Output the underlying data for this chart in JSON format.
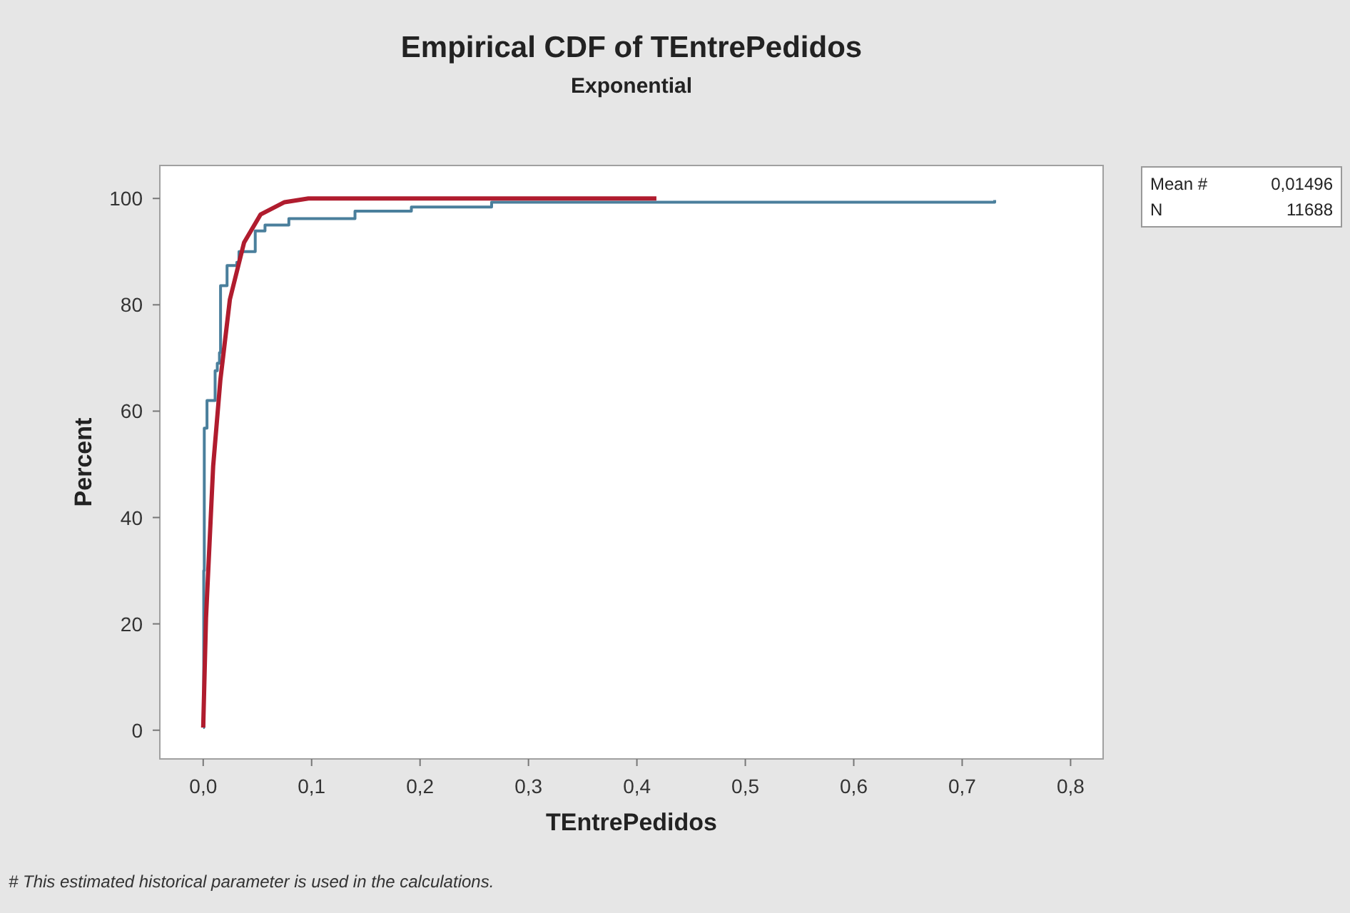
{
  "chart_data": {
    "type": "line",
    "title": "Empirical CDF of TEntrePedidos",
    "subtitle": "Exponential",
    "xlabel": "TEntrePedidos",
    "ylabel": "Percent",
    "xlim": [
      -0.04,
      0.83
    ],
    "ylim": [
      -5.4,
      106.2
    ],
    "xticks": [
      {
        "value": 0,
        "label": "0,0"
      },
      {
        "value": 0.1,
        "label": "0,1"
      },
      {
        "value": 0.2,
        "label": "0,2"
      },
      {
        "value": 0.3,
        "label": "0,3"
      },
      {
        "value": 0.4,
        "label": "0,4"
      },
      {
        "value": 0.5,
        "label": "0,5"
      },
      {
        "value": 0.6,
        "label": "0,6"
      },
      {
        "value": 0.7,
        "label": "0,7"
      },
      {
        "value": 0.8,
        "label": "0,8"
      }
    ],
    "yticks": [
      0,
      20,
      40,
      60,
      80,
      100
    ],
    "series": [
      {
        "type": "step",
        "color": "#4a7f9c",
        "x": [
          0,
          0.0005,
          0.001,
          0.0035,
          0.011,
          0.013,
          0.015,
          0.016,
          0.022,
          0.031,
          0.033,
          0.048,
          0.057,
          0.079,
          0.14,
          0.192,
          0.266,
          0.73
        ],
        "values": [
          0.5,
          30,
          56.8,
          62,
          67.6,
          69,
          71,
          83.6,
          87.4,
          88,
          90,
          93.9,
          95,
          96.2,
          97.6,
          98.4,
          99.3,
          99.7
        ]
      },
      {
        "color": "#b01c2e",
        "x": [
          0,
          0.0026,
          0.0092,
          0.0158,
          0.0246,
          0.0377,
          0.053,
          0.075,
          0.097,
          0.418
        ],
        "values": [
          0.5,
          21.1,
          49.7,
          65.8,
          81,
          91.7,
          97,
          99.3,
          100,
          100
        ]
      }
    ],
    "annotations": [
      "Mean #",
      "0,01496",
      "N",
      "11688",
      "# This estimated historical parameter is used in the calculations."
    ]
  }
}
